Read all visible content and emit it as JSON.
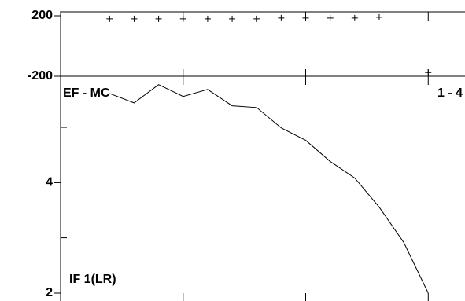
{
  "chart_data": [
    {
      "type": "scatter",
      "x": [
        2,
        3,
        4,
        5,
        6,
        7,
        8,
        9,
        10,
        11,
        12,
        13,
        15
      ],
      "values": [
        180,
        180,
        180,
        180,
        180,
        180,
        180,
        185,
        185,
        185,
        185,
        190,
        -175
      ],
      "color": "#000000",
      "xlim": [
        0,
        16.5
      ],
      "xticks": [
        5,
        10,
        15
      ],
      "ylim": [
        -200,
        200
      ],
      "yticks": [
        -200,
        200
      ]
    },
    {
      "type": "line",
      "x": [
        2,
        3,
        4,
        5,
        6,
        7,
        8,
        9,
        10,
        11,
        12,
        13,
        14,
        15
      ],
      "values": [
        7.0,
        6.6,
        7.4,
        6.87,
        7.18,
        6.48,
        6.41,
        5.64,
        5.22,
        4.57,
        4.12,
        3.43,
        2.75,
        2.0
      ],
      "color": "#000000",
      "xlim": [
        0,
        16.5
      ],
      "xticks": [
        5,
        10,
        15
      ],
      "ylim": [
        2,
        7.8
      ],
      "yticks": [
        2,
        4
      ],
      "minor_yticks": [
        2.83,
        5.66
      ],
      "log_scale": true,
      "annotations": [
        "EF - MC",
        "1 - 4",
        "IF 1(LR)"
      ]
    }
  ]
}
